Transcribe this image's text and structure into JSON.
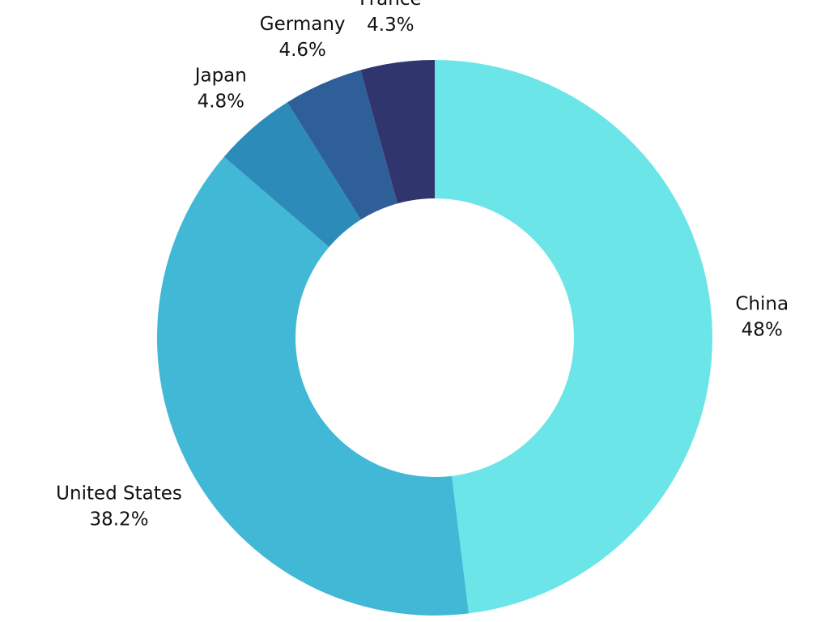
{
  "chart_data": {
    "type": "donut",
    "categories": [
      "China",
      "United States",
      "Japan",
      "Germany",
      "France"
    ],
    "values": [
      48,
      38.2,
      4.8,
      4.6,
      4.3
    ],
    "value_labels": [
      "48%",
      "38.2%",
      "4.8%",
      "4.6%",
      "4.3%"
    ],
    "colors": [
      "#6ce5e8",
      "#41b8d5",
      "#2d8bba",
      "#2f5f98",
      "#31356e"
    ]
  }
}
